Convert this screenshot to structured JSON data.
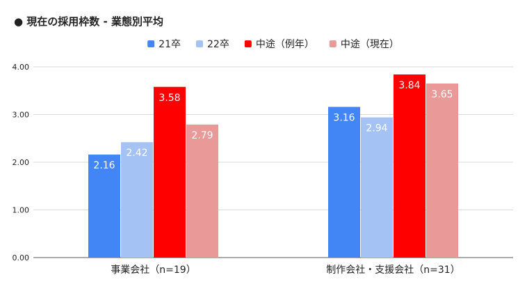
{
  "chart_data": {
    "type": "bar",
    "title": "● 現在の採用枠数 - 業態別平均",
    "categories": [
      "事業会社（n=19）",
      "制作会社・支援会社（n=31）"
    ],
    "series": [
      {
        "name": "21卒",
        "color": "#4285f4",
        "values": [
          2.16,
          3.16
        ]
      },
      {
        "name": "22卒",
        "color": "#a4c2f4",
        "values": [
          2.42,
          2.94
        ]
      },
      {
        "name": "中途（例年）",
        "color": "#ff0000",
        "values": [
          3.58,
          3.84
        ]
      },
      {
        "name": "中途（現在）",
        "color": "#ea9999",
        "values": [
          2.79,
          3.65
        ]
      }
    ],
    "ylim": [
      0,
      4
    ],
    "yticks": [
      "0.00",
      "1.00",
      "2.00",
      "3.00",
      "4.00"
    ],
    "grid": true,
    "legend_position": "top-center",
    "xlabel": "",
    "ylabel": ""
  }
}
